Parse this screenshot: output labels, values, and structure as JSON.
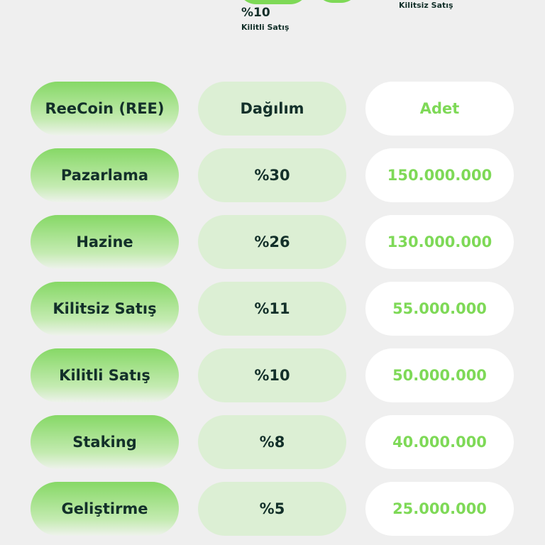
{
  "chart_top": {
    "percent": "%10",
    "label": "Kilitli Satış",
    "label2": "Kilitsiz Satış",
    "accent": "#7ed957"
  },
  "table": {
    "header": {
      "name": "ReeCoin (REE)",
      "share": "Dağılım",
      "amount": "Adet"
    },
    "rows": [
      {
        "name": "Pazarlama",
        "share": "%30",
        "amount": "150.000.000"
      },
      {
        "name": "Hazine",
        "share": "%26",
        "amount": "130.000.000"
      },
      {
        "name": "Kilitsiz Satış",
        "share": "%11",
        "amount": "55.000.000"
      },
      {
        "name": "Kilitli Satış",
        "share": "%10",
        "amount": "50.000.000"
      },
      {
        "name": "Staking",
        "share": "%8",
        "amount": "40.000.000"
      },
      {
        "name": "Geliştirme",
        "share": "%5",
        "amount": "25.000.000"
      }
    ]
  }
}
